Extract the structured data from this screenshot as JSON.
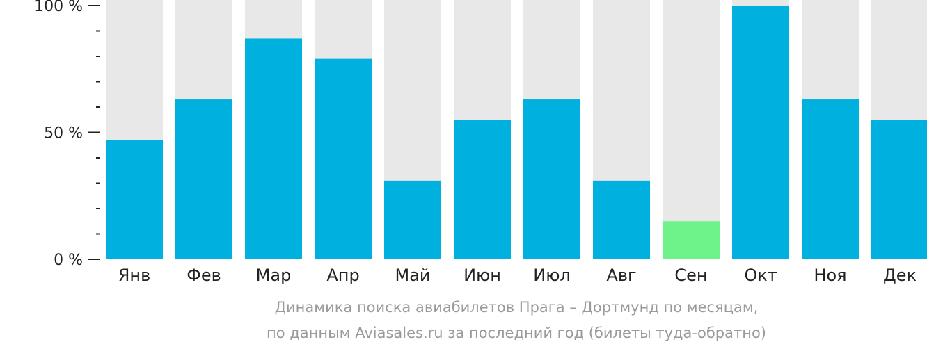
{
  "chart_data": {
    "type": "bar",
    "categories": [
      "Янв",
      "Фев",
      "Мар",
      "Апр",
      "Май",
      "Июн",
      "Июл",
      "Авг",
      "Сен",
      "Окт",
      "Ноя",
      "Дек"
    ],
    "values": [
      47,
      63,
      87,
      79,
      31,
      55,
      63,
      31,
      15,
      100,
      63,
      55
    ],
    "highlight_index": 8,
    "y_tick_labels": [
      "100 %",
      "50 %",
      "0 %"
    ],
    "y_tick_values": [
      100,
      50,
      0
    ],
    "ylim": [
      0,
      100
    ],
    "grid": false,
    "legend": "none",
    "caption": [
      "Динамика поиска авиабилетов Прага – Дортмунд по месяцам,",
      "по данным Aviasales.ru за последний год (билеты туда-обратно)"
    ],
    "colors": {
      "bar": "#00b0de",
      "highlight": "#6ef28a",
      "background_bar": "#e8e8e8",
      "axis": "#222222",
      "caption": "#9a9a9a"
    }
  }
}
